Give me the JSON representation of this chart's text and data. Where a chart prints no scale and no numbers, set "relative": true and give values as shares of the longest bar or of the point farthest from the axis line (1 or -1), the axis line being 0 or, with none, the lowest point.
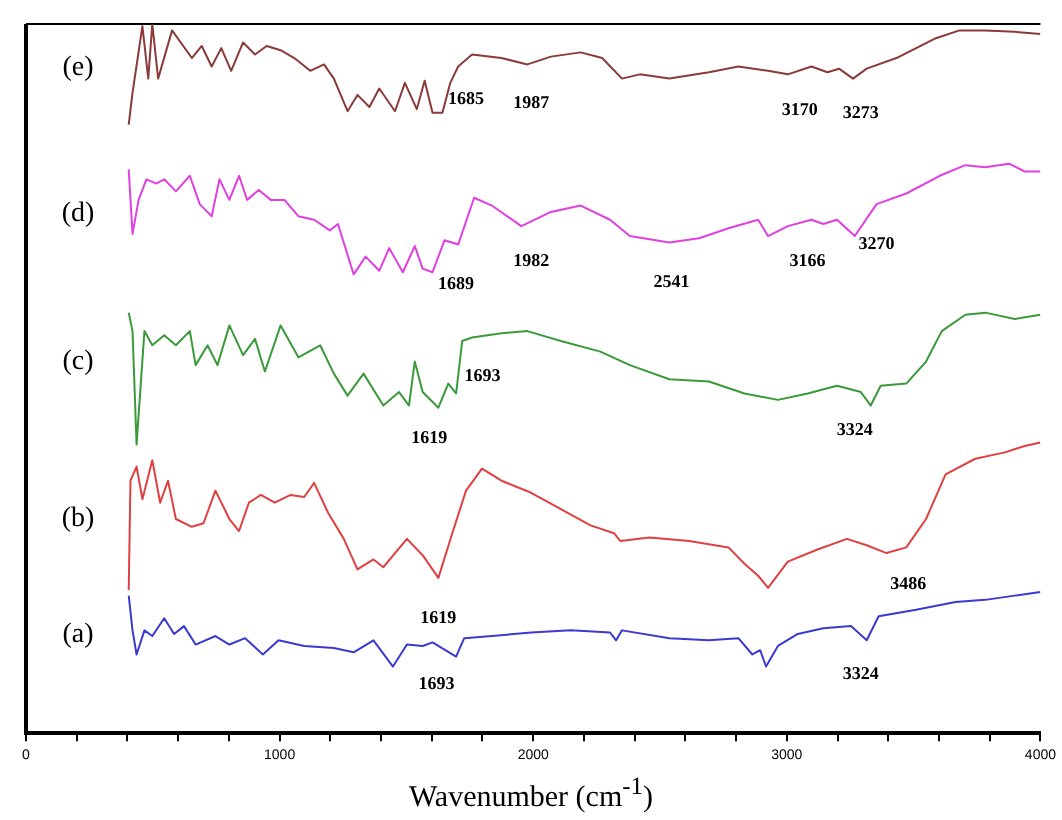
{
  "chart_data": {
    "type": "line",
    "xlabel": "Wavenumber (cm$^{-1}$)",
    "relative": true,
    "xlim": [
      0,
      4000
    ],
    "xticks": [
      0,
      {
        "value": 200,
        "label": null
      },
      {
        "value": 400,
        "label": null
      },
      {
        "value": 600,
        "label": null
      },
      {
        "value": 800,
        "label": null
      },
      1000,
      {
        "value": 1200,
        "label": null
      },
      {
        "value": 1400,
        "label": null
      },
      {
        "value": 1600,
        "label": null
      },
      {
        "value": 1800,
        "label": null
      },
      2000,
      {
        "value": 2200,
        "label": null
      },
      {
        "value": 2400,
        "label": null
      },
      {
        "value": 2600,
        "label": null
      },
      {
        "value": 2800,
        "label": null
      },
      3000,
      {
        "value": 3200,
        "label": null
      },
      {
        "value": 3400,
        "label": null
      },
      {
        "value": 3600,
        "label": null
      },
      {
        "value": 3800,
        "label": null
      },
      4000
    ],
    "grid": false,
    "legend": false,
    "marker": "none",
    "line_style": "solid",
    "series": [
      {
        "name": "(e)",
        "color": "#8b3a3a",
        "x": [
          405,
          420,
          459,
          482,
          498,
          521,
          576,
          654,
          693,
          732,
          770,
          809,
          856,
          903,
          949,
          1004,
          1058,
          1121,
          1175,
          1214,
          1268,
          1307,
          1354,
          1393,
          1455,
          1494,
          1541,
          1572,
          1603,
          1642,
          1673,
          1704,
          1759,
          1875,
          1977,
          2070,
          2187,
          2272,
          2350,
          2420,
          2537,
          2693,
          2809,
          2926,
          3004,
          3097,
          3160,
          3206,
          3261,
          3315,
          3432,
          3510,
          3588,
          3681,
          3782,
          3899,
          4000
        ],
        "values": [
          0.858,
          0.903,
          0.997,
          0.923,
          1.0,
          0.923,
          0.991,
          0.952,
          0.969,
          0.94,
          0.966,
          0.934,
          0.974,
          0.957,
          0.969,
          0.963,
          0.952,
          0.934,
          0.943,
          0.923,
          0.877,
          0.9,
          0.883,
          0.909,
          0.877,
          0.917,
          0.88,
          0.92,
          0.875,
          0.875,
          0.917,
          0.94,
          0.957,
          0.952,
          0.943,
          0.954,
          0.96,
          0.952,
          0.923,
          0.929,
          0.923,
          0.932,
          0.94,
          0.934,
          0.929,
          0.94,
          0.932,
          0.937,
          0.923,
          0.937,
          0.952,
          0.966,
          0.98,
          0.991,
          0.991,
          0.989,
          0.986
        ]
      },
      {
        "name": "(d)",
        "color": "#e040e0",
        "x": [
          405,
          420,
          444,
          475,
          514,
          545,
          591,
          646,
          685,
          732,
          763,
          802,
          840,
          872,
          918,
          965,
          1019,
          1074,
          1136,
          1198,
          1230,
          1292,
          1339,
          1393,
          1432,
          1486,
          1533,
          1564,
          1603,
          1650,
          1704,
          1767,
          1837,
          1953,
          2070,
          2187,
          2303,
          2381,
          2537,
          2654,
          2770,
          2887,
          2926,
          3004,
          3097,
          3144,
          3198,
          3268,
          3354,
          3471,
          3603,
          3704,
          3782,
          3876,
          3938,
          4000
        ],
        "values": [
          0.795,
          0.704,
          0.752,
          0.781,
          0.775,
          0.781,
          0.764,
          0.786,
          0.746,
          0.729,
          0.781,
          0.752,
          0.786,
          0.752,
          0.766,
          0.752,
          0.752,
          0.729,
          0.724,
          0.709,
          0.718,
          0.647,
          0.672,
          0.652,
          0.684,
          0.65,
          0.687,
          0.655,
          0.65,
          0.695,
          0.689,
          0.755,
          0.744,
          0.715,
          0.735,
          0.744,
          0.724,
          0.701,
          0.692,
          0.698,
          0.712,
          0.724,
          0.701,
          0.715,
          0.724,
          0.718,
          0.724,
          0.701,
          0.746,
          0.761,
          0.786,
          0.801,
          0.798,
          0.803,
          0.792,
          0.792
        ]
      },
      {
        "name": "(c)",
        "color": "#3a9a3a",
        "x": [
          405,
          420,
          436,
          467,
          498,
          545,
          591,
          646,
          669,
          716,
          755,
          802,
          856,
          903,
          942,
          1004,
          1074,
          1160,
          1214,
          1268,
          1331,
          1409,
          1471,
          1510,
          1533,
          1564,
          1626,
          1665,
          1696,
          1720,
          1759,
          1875,
          1977,
          2109,
          2265,
          2381,
          2537,
          2693,
          2833,
          2965,
          3082,
          3198,
          3292,
          3331,
          3370,
          3471,
          3549,
          3611,
          3704,
          3782,
          3899,
          4000
        ],
        "values": [
          0.593,
          0.567,
          0.407,
          0.567,
          0.547,
          0.561,
          0.547,
          0.567,
          0.519,
          0.547,
          0.519,
          0.575,
          0.533,
          0.556,
          0.51,
          0.575,
          0.53,
          0.547,
          0.507,
          0.476,
          0.507,
          0.462,
          0.481,
          0.462,
          0.524,
          0.481,
          0.459,
          0.493,
          0.479,
          0.553,
          0.558,
          0.564,
          0.567,
          0.553,
          0.538,
          0.519,
          0.499,
          0.496,
          0.479,
          0.47,
          0.479,
          0.49,
          0.481,
          0.462,
          0.49,
          0.493,
          0.524,
          0.567,
          0.59,
          0.593,
          0.584,
          0.59
        ]
      },
      {
        "name": "(b)",
        "color": "#e04040",
        "x": [
          405,
          412,
          436,
          459,
          498,
          529,
          560,
          591,
          654,
          700,
          747,
          802,
          840,
          879,
          926,
          981,
          1043,
          1097,
          1136,
          1191,
          1253,
          1307,
          1370,
          1409,
          1502,
          1564,
          1626,
          1681,
          1735,
          1798,
          1875,
          1992,
          2109,
          2226,
          2319,
          2343,
          2459,
          2615,
          2770,
          2833,
          2887,
          2926,
          3004,
          3121,
          3237,
          3315,
          3393,
          3471,
          3549,
          3626,
          3743,
          3860,
          3938,
          4000
        ],
        "values": [
          0.202,
          0.356,
          0.376,
          0.33,
          0.385,
          0.325,
          0.356,
          0.302,
          0.291,
          0.296,
          0.342,
          0.302,
          0.285,
          0.325,
          0.336,
          0.325,
          0.336,
          0.333,
          0.353,
          0.311,
          0.274,
          0.231,
          0.245,
          0.234,
          0.274,
          0.251,
          0.219,
          0.282,
          0.342,
          0.373,
          0.356,
          0.339,
          0.316,
          0.293,
          0.282,
          0.271,
          0.276,
          0.271,
          0.262,
          0.239,
          0.222,
          0.205,
          0.242,
          0.259,
          0.274,
          0.265,
          0.254,
          0.262,
          0.302,
          0.365,
          0.387,
          0.396,
          0.405,
          0.41
        ]
      },
      {
        "name": "(a)",
        "color": "#3a3ad0",
        "x": [
          405,
          420,
          436,
          467,
          498,
          545,
          584,
          623,
          669,
          747,
          802,
          864,
          934,
          996,
          1097,
          1214,
          1292,
          1370,
          1447,
          1502,
          1564,
          1603,
          1696,
          1728,
          1837,
          1992,
          2148,
          2303,
          2327,
          2350,
          2537,
          2693,
          2809,
          2864,
          2895,
          2918,
          2965,
          3043,
          3144,
          3253,
          3315,
          3362,
          3510,
          3665,
          3782,
          3899,
          4000
        ],
        "values": [
          0.194,
          0.145,
          0.111,
          0.145,
          0.137,
          0.162,
          0.14,
          0.151,
          0.125,
          0.137,
          0.125,
          0.134,
          0.111,
          0.131,
          0.123,
          0.12,
          0.114,
          0.131,
          0.094,
          0.125,
          0.123,
          0.128,
          0.108,
          0.134,
          0.137,
          0.142,
          0.145,
          0.142,
          0.131,
          0.145,
          0.134,
          0.131,
          0.134,
          0.111,
          0.117,
          0.094,
          0.123,
          0.14,
          0.148,
          0.151,
          0.131,
          0.165,
          0.174,
          0.185,
          0.188,
          0.194,
          0.199
        ]
      }
    ],
    "annotations": [
      {
        "text": "1685",
        "x": 1735,
        "y": 0.95
      },
      {
        "text": "1987",
        "x": 1992,
        "y": 0.945
      },
      {
        "text": "3170",
        "x": 3051,
        "y": 0.935
      },
      {
        "text": "3273",
        "x": 3292,
        "y": 0.93
      },
      {
        "text": "1689",
        "x": 1696,
        "y": 0.69
      },
      {
        "text": "1982",
        "x": 1992,
        "y": 0.722
      },
      {
        "text": "2541",
        "x": 2545,
        "y": 0.692
      },
      {
        "text": "3166",
        "x": 3082,
        "y": 0.722
      },
      {
        "text": "3270",
        "x": 3354,
        "y": 0.746
      },
      {
        "text": "1619",
        "x": 1590,
        "y": 0.472
      },
      {
        "text": "1693",
        "x": 1800,
        "y": 0.559
      },
      {
        "text": "3324",
        "x": 3268,
        "y": 0.483
      },
      {
        "text": "1619",
        "x": 1626,
        "y": 0.219
      },
      {
        "text": "3486",
        "x": 3479,
        "y": 0.266
      },
      {
        "text": "1693",
        "x": 1619,
        "y": 0.125
      },
      {
        "text": "3324",
        "x": 3292,
        "y": 0.139
      }
    ]
  }
}
